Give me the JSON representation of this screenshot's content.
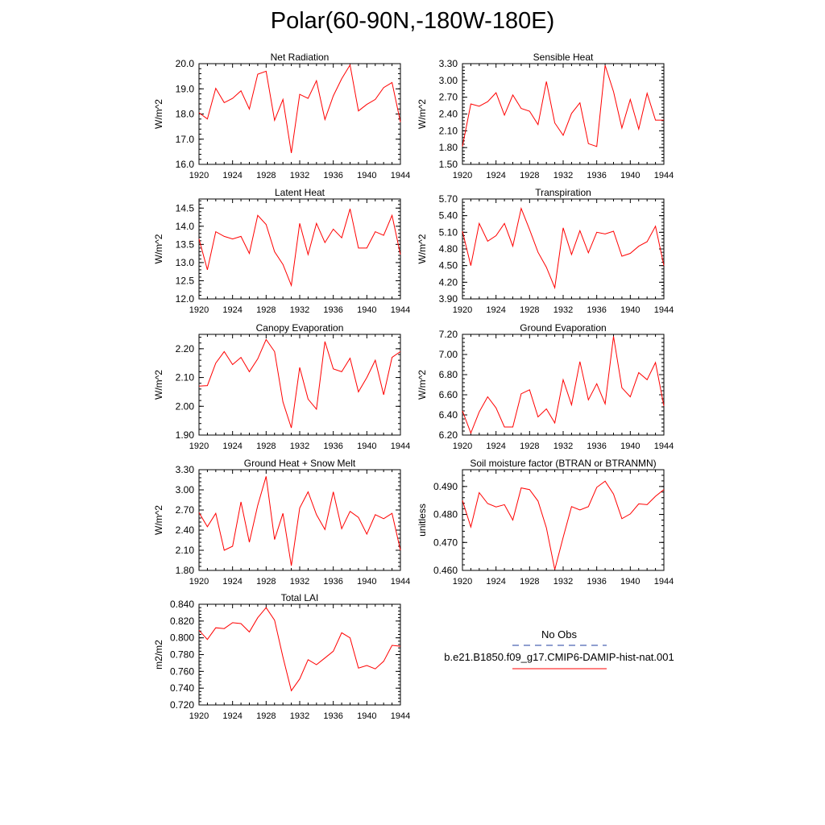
{
  "title": "Polar(60-90N,-180W-180E)",
  "legend": {
    "entries": [
      {
        "label": "No Obs",
        "color": "#1f3fa0",
        "dash": "8,6"
      },
      {
        "label": "b.e21.B1850.f09_g17.CMIP6-DAMIP-hist-nat.001",
        "color": "#ff0000",
        "dash": ""
      }
    ]
  },
  "chart_data": [
    {
      "type": "line",
      "title": "Net Radiation",
      "xlabel": "",
      "ylabel": "W/m^2",
      "xlim": [
        1920,
        1944
      ],
      "ylim": [
        16.0,
        20.0
      ],
      "xticks": [
        "1920",
        "1924",
        "1928",
        "1932",
        "1936",
        "1940",
        "1944"
      ],
      "yticks": [
        "16.0",
        "17.0",
        "18.0",
        "19.0",
        "20.0"
      ],
      "x": [
        1920,
        1921,
        1922,
        1923,
        1924,
        1925,
        1926,
        1927,
        1928,
        1929,
        1930,
        1931,
        1932,
        1933,
        1934,
        1935,
        1936,
        1937,
        1938,
        1939,
        1940,
        1941,
        1942,
        1943,
        1944
      ],
      "series": [
        {
          "name": "b.e21.B1850.f09_g17.CMIP6-DAMIP-hist-nat.001",
          "color": "#ff0000",
          "values": [
            18.05,
            17.8,
            19.02,
            18.45,
            18.62,
            18.92,
            18.2,
            19.58,
            19.7,
            17.75,
            18.58,
            16.45,
            18.78,
            18.62,
            19.32,
            17.78,
            18.72,
            19.4,
            19.95,
            18.12,
            18.38,
            18.58,
            19.05,
            19.25,
            17.68
          ]
        }
      ]
    },
    {
      "type": "line",
      "title": "Sensible Heat",
      "xlabel": "",
      "ylabel": "W/m^2",
      "xlim": [
        1920,
        1944
      ],
      "ylim": [
        1.5,
        3.3
      ],
      "xticks": [
        "1920",
        "1924",
        "1928",
        "1932",
        "1936",
        "1940",
        "1944"
      ],
      "yticks": [
        "1.50",
        "1.80",
        "2.10",
        "2.40",
        "2.70",
        "3.00",
        "3.30"
      ],
      "x": [
        1920,
        1921,
        1922,
        1923,
        1924,
        1925,
        1926,
        1927,
        1928,
        1929,
        1930,
        1931,
        1932,
        1933,
        1934,
        1935,
        1936,
        1937,
        1938,
        1939,
        1940,
        1941,
        1942,
        1943,
        1944
      ],
      "series": [
        {
          "name": "b.e21.B1850.f09_g17.CMIP6-DAMIP-hist-nat.001",
          "color": "#ff0000",
          "values": [
            1.82,
            2.58,
            2.54,
            2.62,
            2.78,
            2.38,
            2.74,
            2.5,
            2.45,
            2.21,
            2.98,
            2.24,
            2.02,
            2.41,
            2.6,
            1.87,
            1.82,
            3.27,
            2.8,
            2.15,
            2.66,
            2.13,
            2.77,
            2.29,
            2.29
          ]
        }
      ]
    },
    {
      "type": "line",
      "title": "Latent Heat",
      "xlabel": "",
      "ylabel": "W/m^2",
      "xlim": [
        1920,
        1944
      ],
      "ylim": [
        12.0,
        14.75
      ],
      "xticks": [
        "1920",
        "1924",
        "1928",
        "1932",
        "1936",
        "1940",
        "1944"
      ],
      "yticks": [
        "12.0",
        "12.5",
        "13.0",
        "13.5",
        "14.0",
        "14.5"
      ],
      "x": [
        1920,
        1921,
        1922,
        1923,
        1924,
        1925,
        1926,
        1927,
        1928,
        1929,
        1930,
        1931,
        1932,
        1933,
        1934,
        1935,
        1936,
        1937,
        1938,
        1939,
        1940,
        1941,
        1942,
        1943,
        1944
      ],
      "series": [
        {
          "name": "b.e21.B1850.f09_g17.CMIP6-DAMIP-hist-nat.001",
          "color": "#ff0000",
          "values": [
            13.65,
            12.8,
            13.85,
            13.72,
            13.65,
            13.72,
            13.25,
            14.3,
            14.05,
            13.3,
            12.95,
            12.37,
            14.08,
            13.22,
            14.08,
            13.55,
            13.92,
            13.68,
            14.48,
            13.4,
            13.4,
            13.85,
            13.75,
            14.3,
            13.22
          ]
        }
      ]
    },
    {
      "type": "line",
      "title": "Transpiration",
      "xlabel": "",
      "ylabel": "W/m^2",
      "xlim": [
        1920,
        1944
      ],
      "ylim": [
        3.9,
        5.7
      ],
      "xticks": [
        "1920",
        "1924",
        "1928",
        "1932",
        "1936",
        "1940",
        "1944"
      ],
      "yticks": [
        "3.90",
        "4.20",
        "4.50",
        "4.80",
        "5.10",
        "5.40",
        "5.70"
      ],
      "x": [
        1920,
        1921,
        1922,
        1923,
        1924,
        1925,
        1926,
        1927,
        1928,
        1929,
        1930,
        1931,
        1932,
        1933,
        1934,
        1935,
        1936,
        1937,
        1938,
        1939,
        1940,
        1941,
        1942,
        1943,
        1944
      ],
      "series": [
        {
          "name": "b.e21.B1850.f09_g17.CMIP6-DAMIP-hist-nat.001",
          "color": "#ff0000",
          "values": [
            5.12,
            4.5,
            5.26,
            4.94,
            5.04,
            5.26,
            4.85,
            5.53,
            5.15,
            4.74,
            4.47,
            4.1,
            5.18,
            4.7,
            5.13,
            4.73,
            5.1,
            5.07,
            5.12,
            4.67,
            4.72,
            4.85,
            4.93,
            5.21,
            4.5
          ]
        }
      ]
    },
    {
      "type": "line",
      "title": "Canopy Evaporation",
      "xlabel": "",
      "ylabel": "W/m^2",
      "xlim": [
        1920,
        1944
      ],
      "ylim": [
        1.9,
        2.25
      ],
      "xticks": [
        "1920",
        "1924",
        "1928",
        "1932",
        "1936",
        "1940",
        "1944"
      ],
      "yticks": [
        "1.90",
        "2.00",
        "2.10",
        "2.20"
      ],
      "x": [
        1920,
        1921,
        1922,
        1923,
        1924,
        1925,
        1926,
        1927,
        1928,
        1929,
        1930,
        1931,
        1932,
        1933,
        1934,
        1935,
        1936,
        1937,
        1938,
        1939,
        1940,
        1941,
        1942,
        1943,
        1944
      ],
      "series": [
        {
          "name": "b.e21.B1850.f09_g17.CMIP6-DAMIP-hist-nat.001",
          "color": "#ff0000",
          "values": [
            2.07,
            2.072,
            2.15,
            2.19,
            2.145,
            2.17,
            2.12,
            2.165,
            2.232,
            2.19,
            2.015,
            1.925,
            2.135,
            2.025,
            1.99,
            2.225,
            2.13,
            2.12,
            2.167,
            2.05,
            2.1,
            2.16,
            2.04,
            2.17,
            2.19
          ]
        }
      ]
    },
    {
      "type": "line",
      "title": "Ground Evaporation",
      "xlabel": "",
      "ylabel": "W/m^2",
      "xlim": [
        1920,
        1944
      ],
      "ylim": [
        6.2,
        7.2
      ],
      "xticks": [
        "1920",
        "1924",
        "1928",
        "1932",
        "1936",
        "1940",
        "1944"
      ],
      "yticks": [
        "6.20",
        "6.40",
        "6.60",
        "6.80",
        "7.00",
        "7.20"
      ],
      "x": [
        1920,
        1921,
        1922,
        1923,
        1924,
        1925,
        1926,
        1927,
        1928,
        1929,
        1930,
        1931,
        1932,
        1933,
        1934,
        1935,
        1936,
        1937,
        1938,
        1939,
        1940,
        1941,
        1942,
        1943,
        1944
      ],
      "series": [
        {
          "name": "b.e21.B1850.f09_g17.CMIP6-DAMIP-hist-nat.001",
          "color": "#ff0000",
          "values": [
            6.44,
            6.22,
            6.43,
            6.58,
            6.47,
            6.28,
            6.28,
            6.61,
            6.65,
            6.38,
            6.46,
            6.32,
            6.75,
            6.5,
            6.93,
            6.55,
            6.71,
            6.51,
            7.18,
            6.67,
            6.58,
            6.82,
            6.75,
            6.92,
            6.49
          ]
        }
      ]
    },
    {
      "type": "line",
      "title": "Ground Heat + Snow Melt",
      "xlabel": "",
      "ylabel": "W/m^2",
      "xlim": [
        1920,
        1944
      ],
      "ylim": [
        1.8,
        3.3
      ],
      "xticks": [
        "1920",
        "1924",
        "1928",
        "1932",
        "1936",
        "1940",
        "1944"
      ],
      "yticks": [
        "1.80",
        "2.10",
        "2.40",
        "2.70",
        "3.00",
        "3.30"
      ],
      "x": [
        1920,
        1921,
        1922,
        1923,
        1924,
        1925,
        1926,
        1927,
        1928,
        1929,
        1930,
        1931,
        1932,
        1933,
        1934,
        1935,
        1936,
        1937,
        1938,
        1939,
        1940,
        1941,
        1942,
        1943,
        1944
      ],
      "series": [
        {
          "name": "b.e21.B1850.f09_g17.CMIP6-DAMIP-hist-nat.001",
          "color": "#ff0000",
          "values": [
            2.66,
            2.45,
            2.65,
            2.1,
            2.16,
            2.82,
            2.22,
            2.77,
            3.2,
            2.26,
            2.65,
            1.87,
            2.73,
            2.97,
            2.63,
            2.41,
            2.97,
            2.42,
            2.68,
            2.59,
            2.34,
            2.63,
            2.57,
            2.65,
            2.1
          ]
        }
      ]
    },
    {
      "type": "line",
      "title": "Soil moisture factor (BTRAN or BTRANMN)",
      "xlabel": "",
      "ylabel": "unitless",
      "xlim": [
        1920,
        1944
      ],
      "ylim": [
        0.46,
        0.496
      ],
      "xticks": [
        "1920",
        "1924",
        "1928",
        "1932",
        "1936",
        "1940",
        "1944"
      ],
      "yticks": [
        "0.460",
        "0.470",
        "0.480",
        "0.490"
      ],
      "x": [
        1920,
        1921,
        1922,
        1923,
        1924,
        1925,
        1926,
        1927,
        1928,
        1929,
        1930,
        1931,
        1932,
        1933,
        1934,
        1935,
        1936,
        1937,
        1938,
        1939,
        1940,
        1941,
        1942,
        1943,
        1944
      ],
      "series": [
        {
          "name": "b.e21.B1850.f09_g17.CMIP6-DAMIP-hist-nat.001",
          "color": "#ff0000",
          "values": [
            0.485,
            0.4755,
            0.4878,
            0.4839,
            0.4827,
            0.4835,
            0.478,
            0.4895,
            0.4889,
            0.4848,
            0.4752,
            0.4603,
            0.4718,
            0.4828,
            0.4816,
            0.4828,
            0.4897,
            0.4919,
            0.4873,
            0.4785,
            0.4802,
            0.4838,
            0.4835,
            0.4865,
            0.4889
          ]
        }
      ]
    },
    {
      "type": "line",
      "title": "Total LAI",
      "xlabel": "",
      "ylabel": "m2/m2",
      "xlim": [
        1920,
        1944
      ],
      "ylim": [
        0.72,
        0.84
      ],
      "xticks": [
        "1920",
        "1924",
        "1928",
        "1932",
        "1936",
        "1940",
        "1944"
      ],
      "yticks": [
        "0.720",
        "0.740",
        "0.760",
        "0.780",
        "0.800",
        "0.820",
        "0.840"
      ],
      "x": [
        1920,
        1921,
        1922,
        1923,
        1924,
        1925,
        1926,
        1927,
        1928,
        1929,
        1930,
        1931,
        1932,
        1933,
        1934,
        1935,
        1936,
        1937,
        1938,
        1939,
        1940,
        1941,
        1942,
        1943,
        1944
      ],
      "series": [
        {
          "name": "b.e21.B1850.f09_g17.CMIP6-DAMIP-hist-nat.001",
          "color": "#ff0000",
          "values": [
            0.809,
            0.798,
            0.812,
            0.811,
            0.818,
            0.817,
            0.807,
            0.824,
            0.836,
            0.821,
            0.777,
            0.737,
            0.751,
            0.774,
            0.768,
            0.776,
            0.784,
            0.806,
            0.8,
            0.764,
            0.767,
            0.763,
            0.772,
            0.791,
            0.79
          ]
        }
      ]
    }
  ]
}
